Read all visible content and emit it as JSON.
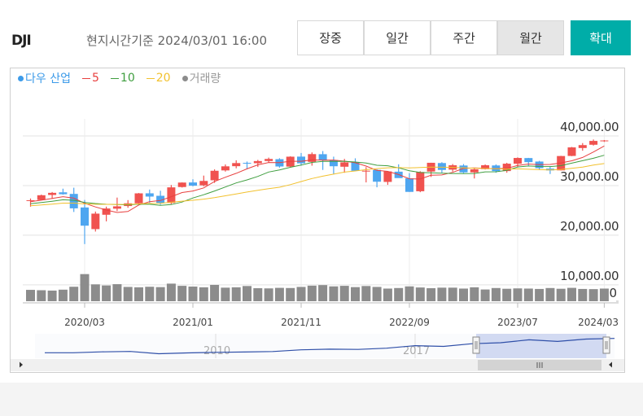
{
  "header": {
    "symbol": "DJI",
    "timestamp": "현지시간기준 2024/03/01 16:00",
    "buttons": [
      "장중",
      "일간",
      "주간",
      "월간",
      "확대"
    ],
    "active_button": "월간"
  },
  "chart_data": {
    "type": "candlestick",
    "name": "다우 산업",
    "name_color": "#3d9be9",
    "up_color": "#f0524f",
    "down_color": "#4ea6f0",
    "categories": [
      null,
      null,
      null,
      null,
      null,
      "2020/03",
      null,
      null,
      null,
      null,
      null,
      null,
      null,
      null,
      null,
      "2021/01",
      null,
      null,
      null,
      null,
      null,
      null,
      null,
      null,
      null,
      "2021/11",
      null,
      null,
      null,
      null,
      null,
      null,
      null,
      null,
      null,
      "2022/09",
      null,
      null,
      null,
      null,
      null,
      null,
      null,
      null,
      null,
      "2023/07",
      null,
      null,
      null,
      null,
      null,
      null,
      null,
      "2024/03"
    ],
    "open": [
      26917,
      27094,
      28109,
      28639,
      28319,
      25590,
      21227,
      24120,
      25342,
      25880,
      26419,
      28439,
      27940,
      26502,
      29705,
      30627,
      30054,
      31065,
      33055,
      33904,
      34584,
      34507,
      34947,
      35312,
      33820,
      35834,
      34773,
      36322,
      35152,
      33795,
      34740,
      32978,
      33156,
      30737,
      32800,
      31454,
      28855,
      32823,
      34537,
      33209,
      34039,
      32656,
      33313,
      34051,
      32922,
      34402,
      35540,
      34838,
      33407,
      33061,
      35970,
      37566,
      38225,
      39000
    ],
    "high": [
      27398,
      28175,
      28701,
      29374,
      29568,
      27102,
      24764,
      25758,
      27580,
      27072,
      28502,
      29199,
      28958,
      30116,
      30637,
      31272,
      32009,
      33259,
      34256,
      35091,
      34849,
      35171,
      35631,
      35510,
      35892,
      36566,
      36679,
      36953,
      35824,
      35372,
      35492,
      33716,
      33272,
      32880,
      34281,
      32504,
      32889,
      34595,
      34712,
      34342,
      34334,
      33572,
      34257,
      34257,
      34588,
      35679,
      35578,
      34977,
      33893,
      35989,
      37778,
      38561,
      39282,
      39172
    ],
    "low": [
      25743,
      27042,
      27325,
      28170,
      24681,
      18213,
      20735,
      22789,
      24843,
      25523,
      26085,
      26537,
      26143,
      26277,
      29602,
      29856,
      29856,
      30547,
      32814,
      33473,
      33271,
      33741,
      34609,
      33613,
      33644,
      34006,
      34006,
      33150,
      32272,
      32578,
      32913,
      30635,
      29653,
      30143,
      31550,
      28715,
      28661,
      31728,
      32573,
      32812,
      32500,
      31430,
      33235,
      32587,
      32586,
      33704,
      34029,
      33176,
      32327,
      33040,
      35927,
      37023,
      38054,
      38800
    ],
    "close": [
      27046,
      28051,
      28538,
      28256,
      25409,
      21917,
      24346,
      25383,
      25813,
      26428,
      28430,
      27782,
      26501,
      29638,
      30606,
      29983,
      30932,
      32981,
      33875,
      34529,
      34503,
      34935,
      35361,
      33844,
      35820,
      34484,
      36338,
      35132,
      33893,
      34678,
      32977,
      32990,
      30775,
      32845,
      31510,
      28726,
      32733,
      34590,
      33147,
      34086,
      32657,
      33274,
      34098,
      32908,
      34408,
      35560,
      34722,
      33508,
      33053,
      35951,
      37690,
      38150,
      38996,
      39087
    ],
    "moving_averages": [
      {
        "name": "5",
        "color": "#e8403f",
        "values": [
          26766,
          27056,
          27391,
          27762,
          27460,
          26434,
          25693,
          25062,
          24574,
          24777,
          26080,
          26767,
          26991,
          27756,
          28591,
          28902,
          29532,
          30828,
          31675,
          32460,
          33364,
          34165,
          34641,
          34634,
          34893,
          34889,
          35169,
          35124,
          35133,
          34905,
          34604,
          33934,
          33063,
          32853,
          32219,
          31369,
          31318,
          32081,
          32141,
          32656,
          33443,
          33551,
          33452,
          33405,
          33469,
          34050,
          34339,
          34221,
          34250,
          34559,
          34985,
          35670,
          36768,
          37975
        ]
      },
      {
        "name": "10",
        "color": "#3f9e3f",
        "values": [
          26333,
          26578,
          26846,
          27131,
          27030,
          26600,
          26375,
          26227,
          26168,
          26119,
          26257,
          26230,
          26027,
          26165,
          26684,
          27491,
          28150,
          28910,
          29716,
          30526,
          31133,
          31849,
          32735,
          33155,
          33677,
          34127,
          34667,
          34883,
          34884,
          34899,
          34747,
          34552,
          34094,
          33993,
          33562,
          32987,
          32626,
          32572,
          32497,
          32438,
          32406,
          32435,
          32767,
          32773,
          33063,
          33747,
          33945,
          33837,
          33828,
          34014,
          34518,
          35005,
          35495,
          36113
        ]
      },
      {
        "name": "20",
        "color": "#f2c12e",
        "values": [
          25917,
          26089,
          26273,
          26466,
          26465,
          26300,
          26238,
          26214,
          26209,
          26210,
          26295,
          26404,
          26437,
          26648,
          26857,
          27046,
          27263,
          27569,
          27942,
          28323,
          28695,
          29040,
          29381,
          29660,
          30181,
          30809,
          31409,
          31897,
          32300,
          32713,
          32940,
          33201,
          33415,
          33574,
          33620,
          33557,
          33647,
          33728,
          33691,
          33669,
          33577,
          33494,
          33431,
          33383,
          33313,
          33367,
          33286,
          33205,
          33163,
          33226,
          33462,
          33720,
          34131,
          34443
        ]
      }
    ],
    "volume": {
      "name": "거래량",
      "color": "#8c8c8c",
      "ylim": [
        0,
        20
      ],
      "yticks": [
        0
      ],
      "values": [
        6.2,
        6.0,
        5.8,
        6.3,
        7.9,
        14.8,
        9.2,
        8.6,
        9.3,
        7.8,
        7.6,
        7.9,
        7.7,
        9.6,
        8.4,
        8.0,
        7.6,
        8.9,
        7.4,
        7.6,
        8.3,
        7.1,
        7.0,
        7.3,
        7.2,
        7.8,
        8.5,
        8.8,
        8.1,
        8.4,
        7.7,
        8.3,
        7.8,
        6.9,
        7.2,
        8.1,
        7.5,
        7.1,
        7.4,
        7.4,
        6.9,
        7.6,
        6.4,
        7.2,
        6.8,
        7.0,
        6.9,
        6.7,
        7.2,
        6.8,
        7.3,
        6.7,
        6.6,
        6.9
      ]
    },
    "ylim": [
      6700,
      50000
    ],
    "yticks": [
      {
        "value": 10000,
        "label": "10,000.00"
      },
      {
        "value": 20000,
        "label": "20,000.00"
      },
      {
        "value": 30000,
        "label": "30,000.00"
      },
      {
        "value": 40000,
        "label": "40,000.00"
      }
    ],
    "grid": true,
    "navigator": {
      "color": "#2f4fa8",
      "ylim": [
        0,
        45000
      ],
      "xticks": [
        2010,
        2017
      ],
      "x": [
        2004,
        2005,
        2006,
        2007,
        2008,
        2009,
        2010,
        2011,
        2012,
        2013,
        2014,
        2015,
        2016,
        2017,
        2018,
        2019,
        2020,
        2021,
        2022,
        2023,
        2024
      ],
      "values": [
        10783,
        10718,
        12463,
        13265,
        8776,
        10428,
        11578,
        12218,
        13104,
        16577,
        17823,
        17425,
        19763,
        24719,
        23327,
        28538,
        30606,
        36338,
        33147,
        37690,
        39087
      ]
    }
  }
}
